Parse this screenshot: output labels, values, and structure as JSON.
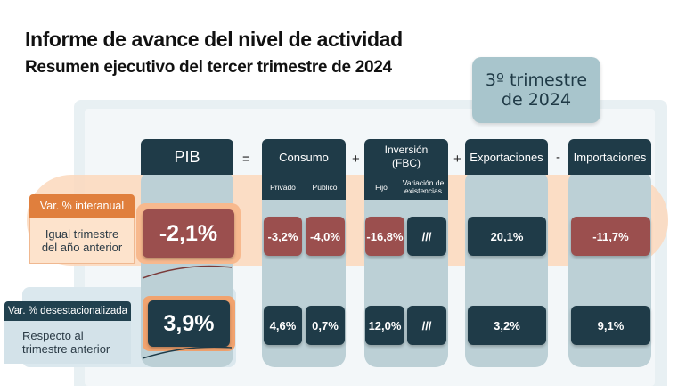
{
  "title": "Informe de avance del nivel de actividad",
  "subtitle": "Resumen ejecutivo del tercer trimestre de 2024",
  "quarter_box": {
    "line1": "3º trimestre",
    "line2": "de 2024"
  },
  "columns": {
    "pib": "PIB",
    "consumo": "Consumo",
    "consumo_sub": [
      "Privado",
      "Público"
    ],
    "inversion_line1": "Inversión",
    "inversion_line2": "(FBC)",
    "inversion_sub": [
      "Fijo",
      "Variación de existencias"
    ],
    "exportaciones": "Exportaciones",
    "importaciones": "Importaciones"
  },
  "operators": {
    "eq": "=",
    "plus1": "+",
    "plus2": "+",
    "minus": "-"
  },
  "rows": {
    "interanual": {
      "label": "Var. % interanual",
      "desc_line1": "Igual trimestre",
      "desc_line2": "del año anterior",
      "pib": "-2,1%",
      "privado": "-3,2%",
      "publico": "-4,0%",
      "fijo": "-16,8%",
      "existencias": "///",
      "exportaciones": "20,1%",
      "importaciones": "-11,7%"
    },
    "desestacionalizada": {
      "label": "Var. % desestacionalizada",
      "desc_line1": "Respecto al",
      "desc_line2": "trimestre anterior",
      "pib": "3,9%",
      "privado": "4,6%",
      "publico": "0,7%",
      "fijo": "12,0%",
      "existencias": "///",
      "exportaciones": "3,2%",
      "importaciones": "9,1%"
    }
  },
  "colors": {
    "navy": "#1f3b48",
    "brick": "#9b4f4e",
    "orange": "#e07f3d",
    "peach": "#fbd8bc",
    "steel": "#bcd0d6"
  }
}
